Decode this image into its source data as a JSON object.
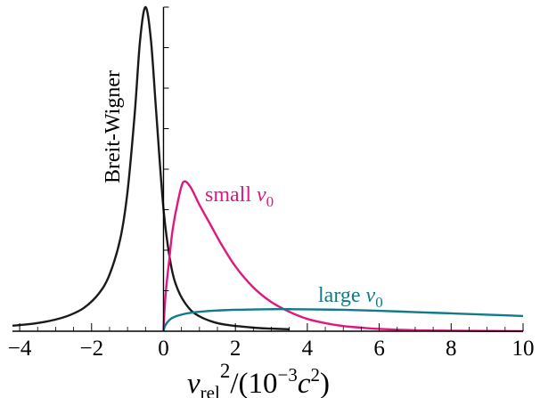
{
  "chart_data": {
    "type": "line",
    "xlabel": {
      "base": "v",
      "sub": "rel",
      "sup1": "2",
      "mid": "/(10",
      "sup2": "−3",
      "c": "c",
      "sup3": "2",
      "close": ")"
    },
    "xlim": [
      -4.2,
      10
    ],
    "ylim": [
      0,
      1.0
    ],
    "x_ticks": [
      -4,
      -2,
      0,
      2,
      4,
      6,
      8,
      10
    ],
    "x_tick_labels": [
      "−4",
      "−2",
      "0",
      "2",
      "4",
      "6",
      "8",
      "10"
    ],
    "y_axis_at": 0,
    "y_ticks_count": 8,
    "grid": false,
    "series": [
      {
        "name": "Breit-Wigner",
        "color": "#1a1a1a",
        "x": [
          -4.2,
          -3.8,
          -3.4,
          -3.0,
          -2.6,
          -2.2,
          -1.8,
          -1.5,
          -1.2,
          -1.0,
          -0.8,
          -0.65,
          -0.5,
          -0.35,
          -0.2,
          0.0,
          0.2,
          0.4,
          0.7,
          1.0,
          1.4,
          1.8,
          2.5,
          3.0,
          3.5
        ],
        "y": [
          0.017,
          0.021,
          0.027,
          0.036,
          0.05,
          0.073,
          0.116,
          0.175,
          0.286,
          0.431,
          0.672,
          0.899,
          1.0,
          0.899,
          0.672,
          0.377,
          0.209,
          0.128,
          0.072,
          0.046,
          0.028,
          0.019,
          0.011,
          0.008,
          0.006
        ]
      },
      {
        "name": "small v0",
        "label_base": "small ",
        "label_var": "v",
        "label_sub": "0",
        "color": "#e0177f",
        "x": [
          0.0,
          0.03,
          0.08,
          0.15,
          0.25,
          0.4,
          0.55,
          0.75,
          1.0,
          1.3,
          1.6,
          2.0,
          2.5,
          3.0,
          3.5,
          4.0,
          4.5,
          5.0,
          5.5,
          6.0,
          7.0,
          8.0,
          9.0,
          10.0
        ],
        "y": [
          0.0,
          0.07,
          0.14,
          0.21,
          0.31,
          0.4,
          0.46,
          0.445,
          0.39,
          0.33,
          0.27,
          0.2,
          0.135,
          0.09,
          0.06,
          0.038,
          0.025,
          0.016,
          0.011,
          0.007,
          0.003,
          0.0015,
          0.0007,
          0.0003
        ]
      },
      {
        "name": "large v0",
        "label_base": "large ",
        "label_var": "v",
        "label_sub": "0",
        "color": "#127a8a",
        "x": [
          0.0,
          0.05,
          0.2,
          0.4,
          0.7,
          1.0,
          1.5,
          2.0,
          2.5,
          3.0,
          3.5,
          4.0,
          5.0,
          6.0,
          7.0,
          8.0,
          9.0,
          10.0
        ],
        "y": [
          0.0,
          0.018,
          0.038,
          0.048,
          0.056,
          0.06,
          0.064,
          0.066,
          0.067,
          0.068,
          0.068,
          0.0675,
          0.066,
          0.063,
          0.059,
          0.055,
          0.051,
          0.047
        ]
      }
    ]
  }
}
